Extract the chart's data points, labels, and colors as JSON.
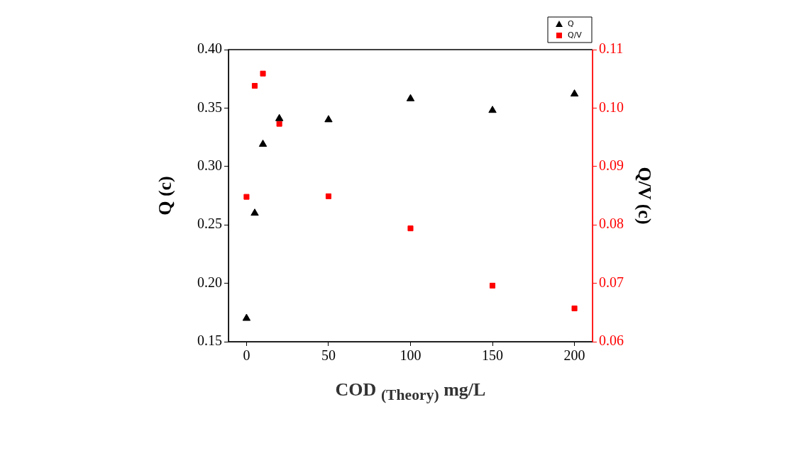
{
  "chart_data": {
    "type": "scatter",
    "xlabel": "COD $_{(Theory)}$ mg/L",
    "ylabel": "Q (c)",
    "y2label": "Q/V (c)",
    "legend": "top right",
    "grid": false,
    "xlim": [
      -11,
      211
    ],
    "xticks": [
      0,
      50,
      100,
      150,
      200
    ],
    "ylim": [
      0.15,
      0.4
    ],
    "yticks": [
      {
        "value": 0.15,
        "label": "0.15"
      },
      {
        "value": 0.2,
        "label": "0.20"
      },
      {
        "value": 0.25,
        "label": "0.25"
      },
      {
        "value": 0.3,
        "label": "0.30"
      },
      {
        "value": 0.35,
        "label": "0.35"
      },
      {
        "value": 0.4,
        "label": "0.40"
      }
    ],
    "y2lim": [
      0.06,
      0.11
    ],
    "y2ticks": [
      {
        "value": 0.06,
        "label": "0.06"
      },
      {
        "value": 0.07,
        "label": "0.07"
      },
      {
        "value": 0.08,
        "label": "0.08"
      },
      {
        "value": 0.09,
        "label": "0.09"
      },
      {
        "value": 0.1,
        "label": "0.10"
      },
      {
        "value": 0.11,
        "label": "0.11"
      }
    ],
    "x": [
      0,
      5,
      10,
      20,
      50,
      100,
      150,
      200
    ],
    "series": [
      {
        "name": "Q",
        "color": "#000000",
        "marker": "triangle",
        "values": [
          0.17,
          0.26,
          0.319,
          0.341,
          0.34,
          0.358,
          0.348,
          0.362
        ]
      },
      {
        "name": "Q/V",
        "color": "#ff0000",
        "marker": "square",
        "axis": "y2",
        "values": [
          0.0848,
          0.1038,
          0.1059,
          0.0973,
          0.0849,
          0.0794,
          0.0696,
          0.0657
        ]
      }
    ]
  }
}
